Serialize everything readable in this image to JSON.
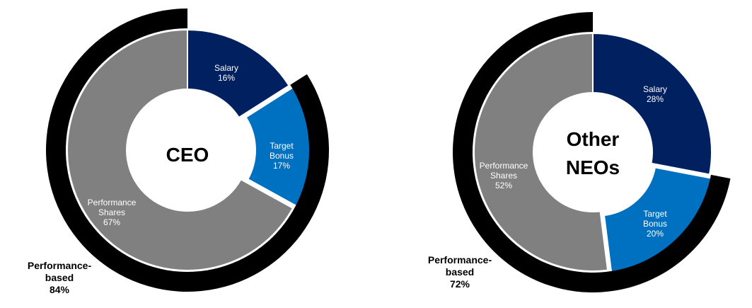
{
  "chart_data": [
    {
      "type": "pie",
      "center_label": "CEO",
      "slices": [
        {
          "name": "Salary",
          "value": 16,
          "label_lines": [
            "Salary",
            "16%"
          ],
          "color": "#002060"
        },
        {
          "name": "Target Bonus",
          "value": 17,
          "label_lines": [
            "Target",
            "Bonus",
            "17%"
          ],
          "color": "#0070C0"
        },
        {
          "name": "Performance Shares",
          "value": 67,
          "label_lines": [
            "Performance",
            "Shares",
            "67%"
          ],
          "color": "#808080"
        }
      ],
      "performance_based": {
        "label_lines": [
          "Performance-",
          "based",
          "84%"
        ],
        "value": 84,
        "color": "#000000"
      }
    },
    {
      "type": "pie",
      "center_label": "Other NEOs",
      "center_label_lines": [
        "Other",
        "NEOs"
      ],
      "slices": [
        {
          "name": "Salary",
          "value": 28,
          "label_lines": [
            "Salary",
            "28%"
          ],
          "color": "#002060"
        },
        {
          "name": "Target Bonus",
          "value": 20,
          "label_lines": [
            "Target",
            "Bonus",
            "20%"
          ],
          "color": "#0070C0"
        },
        {
          "name": "Performance Shares",
          "value": 52,
          "label_lines": [
            "Performance",
            "Shares",
            "52%"
          ],
          "color": "#808080"
        }
      ],
      "performance_based": {
        "label_lines": [
          "Performance-",
          "based",
          "72%"
        ],
        "value": 72,
        "color": "#000000"
      }
    }
  ]
}
